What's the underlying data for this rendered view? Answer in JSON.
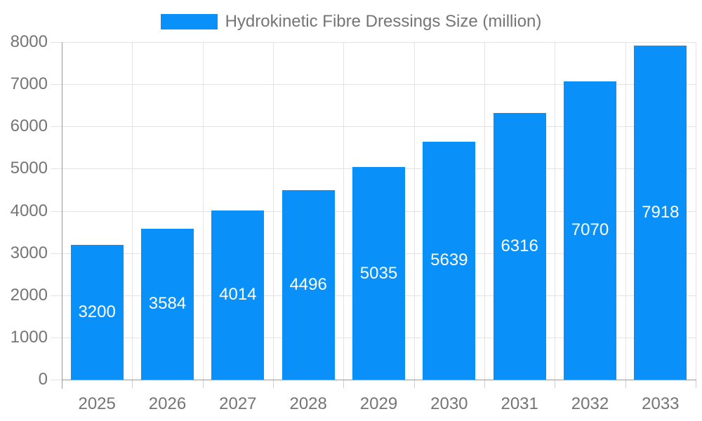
{
  "legend": {
    "label": "Hydrokinetic Fibre Dressings Size (million)"
  },
  "chart_data": {
    "type": "bar",
    "title": "Hydrokinetic Fibre Dressings Size (million)",
    "series_name": "Hydrokinetic Fibre Dressings Size (million)",
    "categories": [
      "2025",
      "2026",
      "2027",
      "2028",
      "2029",
      "2030",
      "2031",
      "2032",
      "2033"
    ],
    "values": [
      3200,
      3584,
      4014,
      4496,
      5035,
      5639,
      6316,
      7070,
      7918
    ],
    "xlabel": "",
    "ylabel": "",
    "ylim": [
      0,
      8000
    ],
    "y_ticks": [
      0,
      1000,
      2000,
      3000,
      4000,
      5000,
      6000,
      7000,
      8000
    ],
    "grid": true,
    "legend_position": "top-center",
    "bar_value_labels": "inside-center",
    "colors": {
      "bar": "#0991f9",
      "bar_label": "#ffffff",
      "grid_line": "#e3e3e3",
      "axis_line": "#999999",
      "category_tick": "#cccccc",
      "tick_label": "#757575",
      "legend_text": "#757575",
      "background": "#ffffff"
    }
  }
}
